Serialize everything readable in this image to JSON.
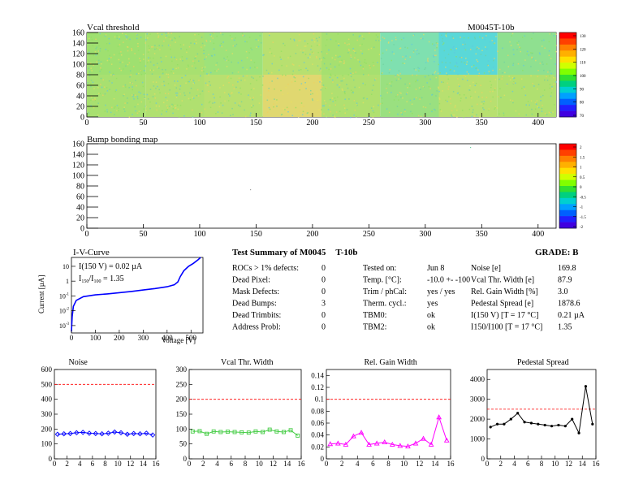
{
  "header": {
    "title": "Vcal threshold",
    "module": "M0045T-10b"
  },
  "vcal_map": {
    "title": "Vcal threshold",
    "xlim": [
      0,
      416
    ],
    "ylim": [
      0,
      160
    ],
    "xticks": [
      "0",
      "50",
      "100",
      "150",
      "200",
      "250",
      "300",
      "350",
      "400"
    ],
    "yticks": [
      "0",
      "20",
      "40",
      "60",
      "80",
      "100",
      "120",
      "140",
      "160"
    ],
    "palette_labels": [
      "130",
      "120",
      "110",
      "100",
      "90",
      "80",
      "70"
    ]
  },
  "bump_map": {
    "title": "Bump bonding map",
    "xlim": [
      0,
      416
    ],
    "ylim": [
      0,
      160
    ],
    "xticks": [
      "0",
      "50",
      "100",
      "150",
      "200",
      "250",
      "300",
      "350",
      "400"
    ],
    "yticks": [
      "0",
      "20",
      "40",
      "60",
      "80",
      "100",
      "120",
      "140",
      "160"
    ],
    "palette_labels": [
      "2",
      "1.5",
      "1",
      "0.5",
      "0",
      "-0.5",
      "-1",
      "-1.5",
      "-2"
    ]
  },
  "iv": {
    "title": "I-V-Curve",
    "ylabel": "Current [µA]",
    "xlabel": "Voltage [V]",
    "annotation_current": "I(150 V) = 0.02 µA",
    "annotation_ratio_prefix": "I",
    "annotation_ratio_sub1": "150",
    "annotation_ratio_mid": "/I",
    "annotation_ratio_sub2": "100",
    "annotation_ratio_value": " = 1.35",
    "xticks": [
      "0",
      "100",
      "200",
      "300",
      "400",
      "500"
    ],
    "yticks": [
      {
        "base": "10",
        "exp": "-3"
      },
      {
        "base": "10",
        "exp": "-2"
      },
      {
        "base": "10",
        "exp": "-1"
      },
      {
        "base": "1",
        "exp": ""
      },
      {
        "base": "10",
        "exp": ""
      }
    ]
  },
  "summary": {
    "title_prefix": "Test Summary of M0045",
    "title_suffix": "T-10b",
    "grade": "GRADE:  B",
    "left": [
      {
        "label": "ROCs > 1% defects:",
        "value": "0"
      },
      {
        "label": "Dead Pixel:",
        "value": "0"
      },
      {
        "label": "Mask Defects:",
        "value": "0"
      },
      {
        "label": "Dead Bumps:",
        "value": "3"
      },
      {
        "label": "Dead Trimbits:",
        "value": "0"
      },
      {
        "label": "Address Probl:",
        "value": "0"
      }
    ],
    "middle": [
      {
        "label": "Tested on:",
        "value": "Jun 8"
      },
      {
        "label": "Temp. [°C]:",
        "value": "-10.0 +- -100"
      },
      {
        "label": "Trim / phCal:",
        "value": "yes / yes"
      },
      {
        "label": "Therm. cycl.:",
        "value": "yes"
      },
      {
        "label": "TBM0:",
        "value": "ok"
      },
      {
        "label": "TBM2:",
        "value": "ok"
      }
    ],
    "right": [
      {
        "label": "Noise [e]",
        "value": "169.8"
      },
      {
        "label": "Vcal Thr. Width [e]",
        "value": "87.9"
      },
      {
        "label": "Rel. Gain Width [%]",
        "value": "3.0"
      },
      {
        "label": "Pedestal Spread [e]",
        "value": "1878.6"
      },
      {
        "label": "I(150 V) [T = 17 °C]",
        "value": "0.21 µA"
      },
      {
        "label": "I150/I100  [T = 17 °C]",
        "value": "1.35"
      }
    ]
  },
  "chart_data": [
    {
      "type": "line",
      "title": "Noise",
      "color": "#0000ff",
      "marker": "diamond",
      "xlim": [
        0,
        16
      ],
      "ylim": [
        0,
        600
      ],
      "reference": 500,
      "xticks": [
        "0",
        "2",
        "4",
        "6",
        "8",
        "10",
        "12",
        "14",
        "16"
      ],
      "yticks": [
        "0",
        "100",
        "200",
        "300",
        "400",
        "500",
        "600"
      ],
      "x": [
        0.5,
        1.5,
        2.5,
        3.5,
        4.5,
        5.5,
        6.5,
        7.5,
        8.5,
        9.5,
        10.5,
        11.5,
        12.5,
        13.5,
        14.5,
        15.5
      ],
      "values": [
        165,
        168,
        170,
        175,
        178,
        172,
        170,
        168,
        172,
        180,
        175,
        165,
        170,
        168,
        172,
        160
      ]
    },
    {
      "type": "line",
      "title": "Vcal Thr. Width",
      "color": "#44cc44",
      "marker": "square",
      "xlim": [
        0,
        16
      ],
      "ylim": [
        0,
        300
      ],
      "reference": 200,
      "xticks": [
        "0",
        "2",
        "4",
        "6",
        "8",
        "10",
        "12",
        "14",
        "16"
      ],
      "yticks": [
        "0",
        "50",
        "100",
        "150",
        "200",
        "250",
        "300"
      ],
      "x": [
        0.5,
        1.5,
        2.5,
        3.5,
        4.5,
        5.5,
        6.5,
        7.5,
        8.5,
        9.5,
        10.5,
        11.5,
        12.5,
        13.5,
        14.5,
        15.5
      ],
      "values": [
        92,
        93,
        84,
        92,
        90,
        91,
        90,
        89,
        88,
        92,
        90,
        98,
        92,
        90,
        96,
        78
      ]
    },
    {
      "type": "line",
      "title": "Rel. Gain Width",
      "color": "#ff00ff",
      "marker": "triangle",
      "xlim": [
        0,
        16
      ],
      "ylim": [
        0,
        0.15
      ],
      "reference": 0.1,
      "xticks": [
        "0",
        "2",
        "4",
        "6",
        "8",
        "10",
        "12",
        "14",
        "16"
      ],
      "yticks": [
        "0",
        "0.02",
        "0.04",
        "0.06",
        "0.08",
        "0.1",
        "0.12",
        "0.14"
      ],
      "x": [
        0.5,
        1.5,
        2.5,
        3.5,
        4.5,
        5.5,
        6.5,
        7.5,
        8.5,
        9.5,
        10.5,
        11.5,
        12.5,
        13.5,
        14.5,
        15.5
      ],
      "values": [
        0.025,
        0.026,
        0.024,
        0.038,
        0.044,
        0.024,
        0.026,
        0.028,
        0.024,
        0.022,
        0.021,
        0.026,
        0.034,
        0.024,
        0.07,
        0.031
      ]
    },
    {
      "type": "line",
      "title": "Pedestal Spread",
      "color": "#000000",
      "marker": "circle",
      "xlim": [
        0,
        16
      ],
      "ylim": [
        0,
        4500
      ],
      "reference": 2500,
      "xticks": [
        "0",
        "2",
        "4",
        "6",
        "8",
        "10",
        "12",
        "14",
        "16"
      ],
      "yticks": [
        "0",
        "1000",
        "2000",
        "3000",
        "4000"
      ],
      "x": [
        0.5,
        1.5,
        2.5,
        3.5,
        4.5,
        5.5,
        6.5,
        7.5,
        8.5,
        9.5,
        10.5,
        11.5,
        12.5,
        13.5,
        14.5,
        15.5
      ],
      "values": [
        1600,
        1750,
        1750,
        2000,
        2300,
        1850,
        1800,
        1750,
        1700,
        1650,
        1700,
        1650,
        2000,
        1300,
        3650,
        1750
      ]
    }
  ]
}
